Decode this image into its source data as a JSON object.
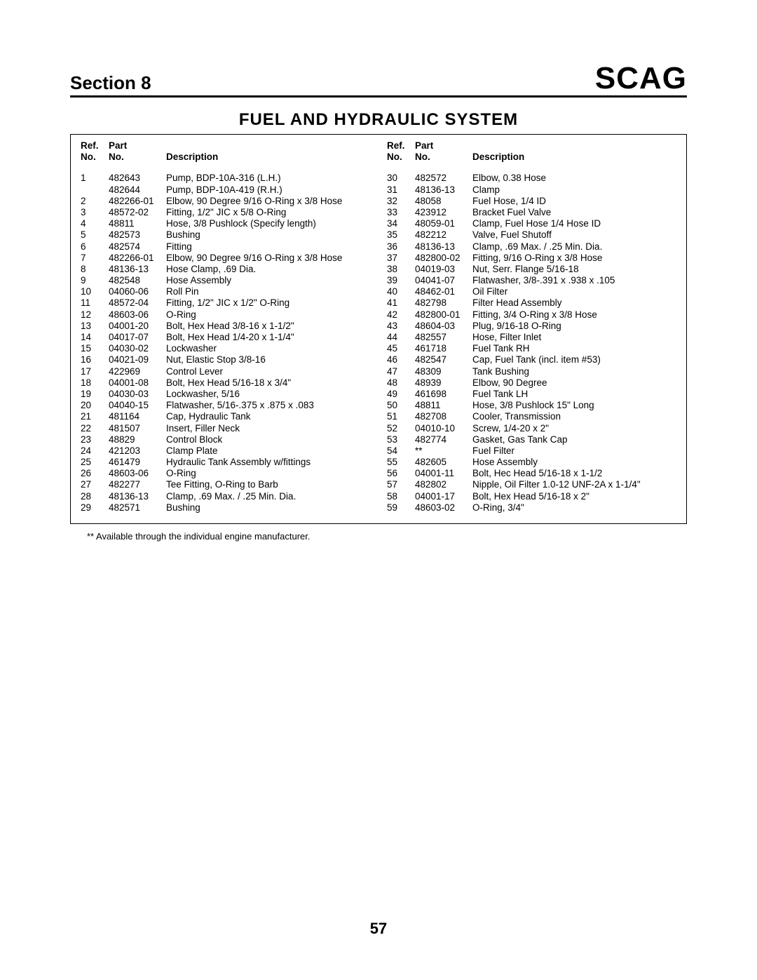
{
  "header": {
    "section": "Section 8",
    "logo": "SCAG"
  },
  "title": "FUEL AND HYDRAULIC SYSTEM",
  "colhead": {
    "ref1": "Ref.",
    "ref2": "No.",
    "part1": "Part",
    "part2": "No.",
    "desc": "Description"
  },
  "left": [
    {
      "r": "1",
      "p": "482643",
      "d": "Pump, BDP-10A-316 (L.H.)"
    },
    {
      "r": "",
      "p": "482644",
      "d": "Pump, BDP-10A-419 (R.H.)"
    },
    {
      "r": "2",
      "p": "482266-01",
      "d": "Elbow, 90 Degree 9/16 O-Ring x 3/8 Hose"
    },
    {
      "r": "3",
      "p": "48572-02",
      "d": "Fitting, 1/2\" JIC x 5/8 O-Ring"
    },
    {
      "r": "4",
      "p": "48811",
      "d": "Hose, 3/8 Pushlock (Specify length)"
    },
    {
      "r": "5",
      "p": "482573",
      "d": "Bushing"
    },
    {
      "r": "6",
      "p": "482574",
      "d": "Fitting"
    },
    {
      "r": "7",
      "p": "482266-01",
      "d": "Elbow, 90 Degree 9/16 O-Ring x 3/8 Hose"
    },
    {
      "r": "8",
      "p": "48136-13",
      "d": "Hose Clamp, .69 Dia."
    },
    {
      "r": "9",
      "p": "482548",
      "d": "Hose Assembly"
    },
    {
      "r": "10",
      "p": "04060-06",
      "d": "Roll Pin"
    },
    {
      "r": "11",
      "p": "48572-04",
      "d": "Fitting, 1/2\" JIC x 1/2\" O-Ring"
    },
    {
      "r": "12",
      "p": "48603-06",
      "d": "O-Ring"
    },
    {
      "r": "13",
      "p": "04001-20",
      "d": "Bolt, Hex Head 3/8-16 x 1-1/2\""
    },
    {
      "r": "14",
      "p": "04017-07",
      "d": "Bolt, Hex Head 1/4-20 x 1-1/4\""
    },
    {
      "r": "15",
      "p": "04030-02",
      "d": "Lockwasher"
    },
    {
      "r": "16",
      "p": "04021-09",
      "d": "Nut, Elastic Stop 3/8-16"
    },
    {
      "r": "17",
      "p": "422969",
      "d": "Control Lever"
    },
    {
      "r": "18",
      "p": "04001-08",
      "d": "Bolt, Hex Head 5/16-18 x 3/4\""
    },
    {
      "r": "19",
      "p": "04030-03",
      "d": "Lockwasher, 5/16"
    },
    {
      "r": "20",
      "p": "04040-15",
      "d": "Flatwasher, 5/16-.375 x .875 x .083"
    },
    {
      "r": "21",
      "p": "481164",
      "d": "Cap, Hydraulic Tank"
    },
    {
      "r": "22",
      "p": "481507",
      "d": "Insert, Filler Neck"
    },
    {
      "r": "23",
      "p": "48829",
      "d": "Control Block"
    },
    {
      "r": "24",
      "p": "421203",
      "d": "Clamp Plate"
    },
    {
      "r": "25",
      "p": "461479",
      "d": "Hydraulic Tank Assembly w/fittings"
    },
    {
      "r": "26",
      "p": "48603-06",
      "d": "O-Ring"
    },
    {
      "r": "27",
      "p": "482277",
      "d": "Tee Fitting, O-Ring to Barb"
    },
    {
      "r": "28",
      "p": "48136-13",
      "d": "Clamp, .69 Max. / .25 Min. Dia."
    },
    {
      "r": "29",
      "p": "482571",
      "d": "Bushing"
    }
  ],
  "right": [
    {
      "r": "30",
      "p": "482572",
      "d": "Elbow, 0.38 Hose"
    },
    {
      "r": "31",
      "p": "48136-13",
      "d": "Clamp"
    },
    {
      "r": "32",
      "p": "48058",
      "d": "Fuel Hose, 1/4 ID"
    },
    {
      "r": "33",
      "p": "423912",
      "d": "Bracket Fuel Valve"
    },
    {
      "r": "34",
      "p": "48059-01",
      "d": "Clamp, Fuel Hose 1/4 Hose ID"
    },
    {
      "r": "35",
      "p": "482212",
      "d": "Valve, Fuel Shutoff"
    },
    {
      "r": "36",
      "p": "48136-13",
      "d": "Clamp, .69 Max. / .25 Min. Dia."
    },
    {
      "r": "37",
      "p": "482800-02",
      "d": "Fitting, 9/16 O-Ring x 3/8 Hose"
    },
    {
      "r": "38",
      "p": "04019-03",
      "d": "Nut, Serr. Flange 5/16-18"
    },
    {
      "r": "39",
      "p": "04041-07",
      "d": "Flatwasher, 3/8-.391 x .938 x .105"
    },
    {
      "r": "40",
      "p": "48462-01",
      "d": "Oil Filter"
    },
    {
      "r": "41",
      "p": "482798",
      "d": "Filter Head Assembly"
    },
    {
      "r": "42",
      "p": "482800-01",
      "d": "Fitting, 3/4 O-Ring x 3/8 Hose"
    },
    {
      "r": "43",
      "p": "48604-03",
      "d": "Plug, 9/16-18 O-Ring"
    },
    {
      "r": "44",
      "p": "482557",
      "d": "Hose, Filter Inlet"
    },
    {
      "r": "45",
      "p": "461718",
      "d": "Fuel Tank RH"
    },
    {
      "r": "46",
      "p": "482547",
      "d": "Cap, Fuel Tank (incl. item #53)"
    },
    {
      "r": "47",
      "p": "48309",
      "d": "Tank Bushing"
    },
    {
      "r": "48",
      "p": "48939",
      "d": "Elbow, 90 Degree"
    },
    {
      "r": "49",
      "p": "461698",
      "d": "Fuel Tank LH"
    },
    {
      "r": "50",
      "p": "48811",
      "d": "Hose, 3/8 Pushlock 15\" Long"
    },
    {
      "r": "51",
      "p": "482708",
      "d": "Cooler, Transmission"
    },
    {
      "r": "52",
      "p": "04010-10",
      "d": "Screw, 1/4-20 x 2\""
    },
    {
      "r": "53",
      "p": "482774",
      "d": "Gasket, Gas Tank Cap"
    },
    {
      "r": "54",
      "p": "**",
      "d": "Fuel Filter"
    },
    {
      "r": "55",
      "p": "482605",
      "d": "Hose Assembly"
    },
    {
      "r": "56",
      "p": "04001-11",
      "d": "Bolt, Hec Head 5/16-18 x 1-1/2"
    },
    {
      "r": "57",
      "p": "482802",
      "d": "Nipple, Oil Filter 1.0-12 UNF-2A x 1-1/4\""
    },
    {
      "r": "58",
      "p": "04001-17",
      "d": "Bolt, Hex Head 5/16-18 x 2\""
    },
    {
      "r": "59",
      "p": "48603-02",
      "d": "O-Ring, 3/4\""
    }
  ],
  "footnote": "**  Available through the individual engine manufacturer.",
  "pagenum": "57",
  "style": {
    "body_bg": "#ffffff",
    "text_color": "#000000",
    "rule_color": "#000000",
    "section_fontsize": 26,
    "logo_fontsize": 44,
    "title_fontsize": 24,
    "body_fontsize": 13.5,
    "footnote_fontsize": 13,
    "pagenum_fontsize": 22
  }
}
